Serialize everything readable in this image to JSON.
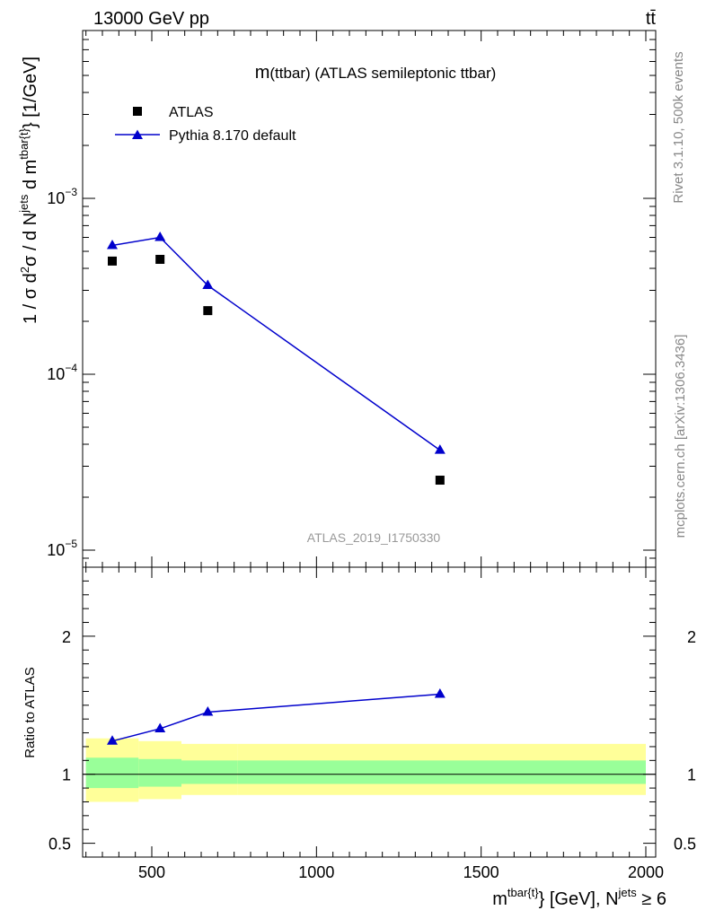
{
  "header": {
    "energy_label": "13000 GeV pp",
    "process_label": "tt̄"
  },
  "side_labels": {
    "rivet": "Rivet 3.1.10,  500k events",
    "mcplots": "mcplots.cern.ch [arXiv:1306.3436]"
  },
  "colors": {
    "data": "#000000",
    "mc": "#0000cc",
    "band_inner": "#99ff99",
    "band_outer": "#ffff99",
    "watermark": "#999999"
  },
  "chart_data": [
    {
      "type": "scatter",
      "panel": "main",
      "title_main": "m",
      "title_rest": "(ttbar) (ATLAS semileptonic ttbar)",
      "ylabel": "1 / σ d²σ / d N^jets d m^tbar{t} [1/GeV]",
      "yscale": "log",
      "ylim": [
        8e-06,
        0.009
      ],
      "xlim": [
        290,
        2030
      ],
      "y_ticks": [
        {
          "v": 1e-05,
          "base": "10",
          "exp": "−5"
        },
        {
          "v": 0.0001,
          "base": "10",
          "exp": "−4"
        },
        {
          "v": 0.001,
          "base": "10",
          "exp": "−3"
        }
      ],
      "legend_position": "top-left",
      "legend": [
        "ATLAS",
        "Pythia 8.170 default"
      ],
      "watermark": "ATLAS_2019_I1750330",
      "series": [
        {
          "name": "ATLAS",
          "marker": "square",
          "x": [
            380,
            525,
            670,
            1375
          ],
          "y": [
            0.00044,
            0.00045,
            0.00023,
            2.5e-05
          ]
        },
        {
          "name": "Pythia 8.170 default",
          "marker": "triangle",
          "x": [
            380,
            525,
            670,
            1375
          ],
          "y": [
            0.00054,
            0.0006,
            0.00032,
            3.7e-05
          ]
        }
      ]
    },
    {
      "type": "scatter",
      "panel": "ratio",
      "ylabel": "Ratio to ATLAS",
      "ylim": [
        0.4,
        2.5
      ],
      "xlim": [
        290,
        2030
      ],
      "y_ticks": [
        {
          "v": 0.5,
          "label": "0.5"
        },
        {
          "v": 1,
          "label": "1"
        },
        {
          "v": 2,
          "label": "2"
        }
      ],
      "x_ticks": [
        {
          "v": 500,
          "label": "500"
        },
        {
          "v": 1000,
          "label": "1000"
        },
        {
          "v": 1500,
          "label": "1500"
        },
        {
          "v": 2000,
          "label": "2000"
        }
      ],
      "xlabel": "m^tbar{t} [GeV], N^jets ≥ 6",
      "bins": [
        {
          "lo": 300,
          "hi": 460,
          "inner": [
            0.9,
            1.12
          ],
          "outer": [
            0.8,
            1.26
          ]
        },
        {
          "lo": 460,
          "hi": 590,
          "inner": [
            0.91,
            1.11
          ],
          "outer": [
            0.82,
            1.24
          ]
        },
        {
          "lo": 590,
          "hi": 760,
          "inner": [
            0.93,
            1.1
          ],
          "outer": [
            0.85,
            1.22
          ]
        },
        {
          "lo": 760,
          "hi": 2000,
          "inner": [
            0.93,
            1.1
          ],
          "outer": [
            0.85,
            1.22
          ]
        }
      ],
      "series": [
        {
          "name": "Pythia 8.170 default / ATLAS",
          "marker": "triangle",
          "x": [
            380,
            525,
            670,
            1375
          ],
          "y": [
            1.24,
            1.33,
            1.45,
            1.58
          ]
        }
      ]
    }
  ]
}
